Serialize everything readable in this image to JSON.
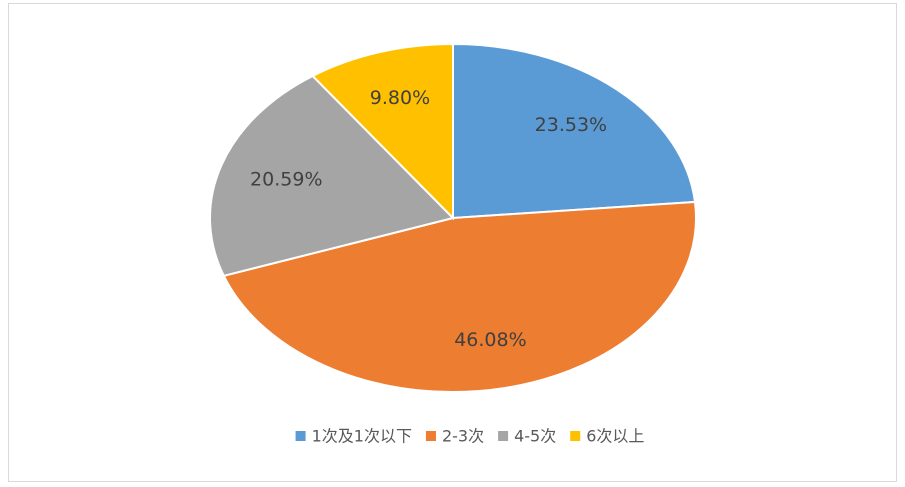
{
  "chart_data": {
    "type": "pie",
    "categories": [
      "1次及1次以下",
      "2-3次",
      "4-5次",
      "6次以上"
    ],
    "values": [
      23.53,
      46.08,
      20.59,
      9.8
    ],
    "value_labels": [
      "23.53%",
      "46.08%",
      "20.59%",
      "9.80%"
    ],
    "colors": [
      "#5b9bd5",
      "#ed7d31",
      "#a5a5a5",
      "#ffc000"
    ],
    "legend": "bottom"
  }
}
